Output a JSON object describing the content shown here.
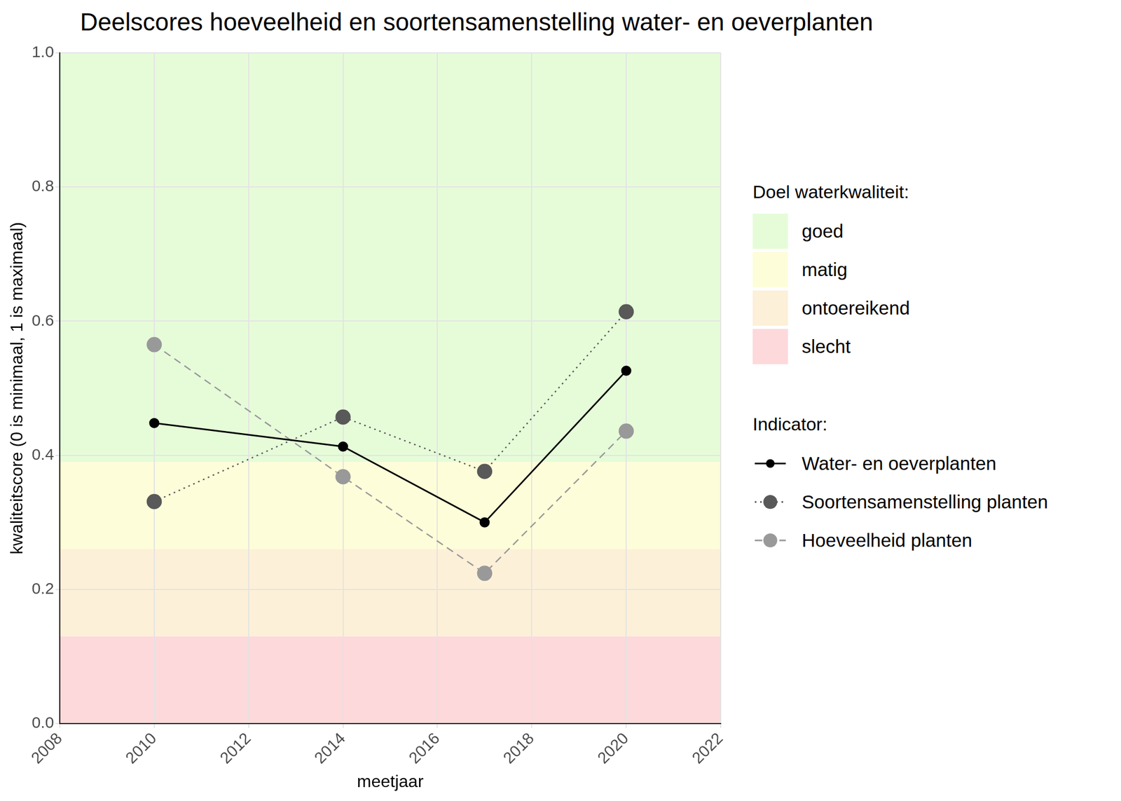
{
  "chart_data": {
    "type": "line",
    "title": "Deelscores hoeveelheid en soortensamenstelling water- en oeverplanten",
    "x_label": "meetjaar",
    "y_label": "kwaliteitscore (0 is minimaal, 1 is maximaal)",
    "x": [
      2010,
      2014,
      2017,
      2020
    ],
    "series": [
      {
        "name": "Water- en oeverplanten",
        "color": "#000000",
        "marker": "circle",
        "line_style": "solid",
        "values": [
          0.448,
          0.413,
          0.3,
          0.526
        ]
      },
      {
        "name": "Soortensamenstelling planten",
        "color": "#595959",
        "marker": "circle",
        "line_style": "dotted",
        "values": [
          0.331,
          0.457,
          0.376,
          0.614
        ]
      },
      {
        "name": "Hoeveelheid planten",
        "color": "#999999",
        "marker": "circle",
        "line_style": "dashed",
        "values": [
          0.565,
          0.368,
          0.224,
          0.436
        ]
      }
    ],
    "legend_title": "Indicator:",
    "bands_title": "Doel waterkwaliteit:",
    "bands": [
      {
        "name": "goed",
        "color": "#e6fcd9",
        "from": 0.39,
        "to": 1.0
      },
      {
        "name": "matig",
        "color": "#fdfdd9",
        "from": 0.26,
        "to": 0.39
      },
      {
        "name": "ontoereikend",
        "color": "#fdf0d8",
        "from": 0.13,
        "to": 0.26
      },
      {
        "name": "slecht",
        "color": "#fdd9db",
        "from": 0.0,
        "to": 0.13
      }
    ],
    "xlim": [
      2008,
      2022
    ],
    "xticks": [
      2008,
      2010,
      2012,
      2014,
      2016,
      2018,
      2020,
      2022
    ],
    "ylim": [
      0,
      1
    ],
    "yticks": [
      {
        "value": 0,
        "label": "0.0"
      },
      0.2,
      0.4,
      0.6,
      0.8,
      {
        "value": 1,
        "label": "1.0"
      }
    ],
    "grid": true,
    "legend": "right"
  }
}
